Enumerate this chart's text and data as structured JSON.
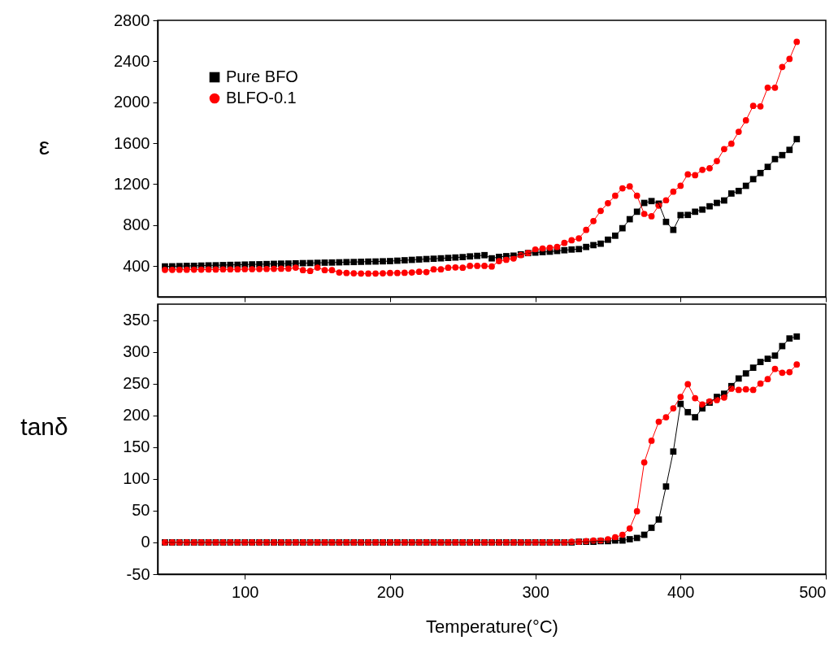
{
  "chart_data": [
    {
      "type": "line",
      "ylabel": "ε",
      "xlim": [
        40,
        500
      ],
      "xticks": [
        100,
        200,
        300,
        400,
        500
      ],
      "ylim": [
        100,
        2800
      ],
      "yticks": [
        400,
        800,
        1200,
        1600,
        2000,
        2400,
        2800
      ],
      "tick_labels": "y",
      "grid": false,
      "legend": "top left",
      "x": [
        45,
        50,
        55,
        60,
        65,
        70,
        75,
        80,
        85,
        90,
        95,
        100,
        105,
        110,
        115,
        120,
        125,
        130,
        135,
        140,
        145,
        150,
        155,
        160,
        165,
        170,
        175,
        180,
        185,
        190,
        195,
        200,
        205,
        210,
        215,
        220,
        225,
        230,
        235,
        240,
        245,
        250,
        255,
        260,
        265,
        270,
        275,
        280,
        285,
        290,
        295,
        300,
        305,
        310,
        315,
        320,
        325,
        330,
        335,
        340,
        345,
        350,
        355,
        360,
        365,
        370,
        375,
        380,
        385,
        390,
        395,
        400,
        405,
        410,
        415,
        420,
        425,
        430,
        435,
        440,
        445,
        450,
        455,
        460,
        465,
        470,
        475,
        480
      ],
      "series": [
        {
          "name": "Pure BFO",
          "color": "#000000",
          "marker": "square",
          "values": [
            397,
            398,
            400,
            402,
            403,
            405,
            407,
            408,
            410,
            412,
            413,
            415,
            417,
            418,
            420,
            422,
            424,
            425,
            427,
            429,
            430,
            432,
            434,
            435,
            437,
            439,
            440,
            442,
            444,
            445,
            447,
            449,
            453,
            457,
            461,
            465,
            469,
            472,
            476,
            480,
            484,
            488,
            495,
            500,
            507,
            476,
            490,
            497,
            502,
            515,
            527,
            532,
            537,
            541,
            548,
            555,
            562,
            566,
            587,
            605,
            619,
            658,
            697,
            770,
            858,
            931,
            1017,
            1035,
            1010,
            832,
            754,
            898,
            900,
            931,
            952,
            984,
            1017,
            1041,
            1109,
            1134,
            1184,
            1249,
            1309,
            1369,
            1445,
            1484,
            1535,
            1640
          ]
        },
        {
          "name": "BLFO-0.1",
          "color": "#ff0000",
          "marker": "circle",
          "values": [
            364,
            364,
            365,
            365,
            366,
            366,
            367,
            367,
            368,
            368,
            369,
            370,
            370,
            371,
            372,
            373,
            374,
            375,
            385,
            361,
            353,
            385,
            361,
            361,
            338,
            333,
            330,
            328,
            327,
            328,
            330,
            333,
            333,
            335,
            338,
            345,
            342,
            369,
            369,
            384,
            387,
            384,
            402,
            402,
            402,
            396,
            449,
            462,
            475,
            507,
            527,
            562,
            572,
            580,
            587,
            627,
            652,
            671,
            754,
            840,
            939,
            1015,
            1087,
            1160,
            1179,
            1087,
            910,
            887,
            991,
            1043,
            1127,
            1184,
            1296,
            1288,
            1340,
            1356,
            1426,
            1543,
            1595,
            1712,
            1824,
            1965,
            1960,
            2142,
            2142,
            2345,
            2423,
            2590
          ]
        }
      ]
    },
    {
      "type": "line",
      "ylabel": "tanδ",
      "xlabel": "Temperature(°C)",
      "xlim": [
        40,
        500
      ],
      "xticks": [
        100,
        200,
        300,
        400,
        500
      ],
      "ylim": [
        -50,
        375
      ],
      "yticks": [
        -50,
        0,
        50,
        100,
        150,
        200,
        250,
        300,
        350
      ],
      "grid": false,
      "x": [
        45,
        50,
        55,
        60,
        65,
        70,
        75,
        80,
        85,
        90,
        95,
        100,
        105,
        110,
        115,
        120,
        125,
        130,
        135,
        140,
        145,
        150,
        155,
        160,
        165,
        170,
        175,
        180,
        185,
        190,
        195,
        200,
        205,
        210,
        215,
        220,
        225,
        230,
        235,
        240,
        245,
        250,
        255,
        260,
        265,
        270,
        275,
        280,
        285,
        290,
        295,
        300,
        305,
        310,
        315,
        320,
        325,
        330,
        335,
        340,
        345,
        350,
        355,
        360,
        365,
        370,
        375,
        380,
        385,
        390,
        395,
        400,
        405,
        410,
        415,
        420,
        425,
        430,
        435,
        440,
        445,
        450,
        455,
        460,
        465,
        470,
        475,
        480
      ],
      "series": [
        {
          "color": "#000000",
          "marker": "square",
          "values": [
            0,
            0,
            0,
            0,
            0,
            0,
            0,
            0,
            0,
            0,
            0,
            0,
            0,
            0,
            0,
            0,
            0,
            0,
            0,
            0,
            0,
            0,
            0,
            0,
            0,
            0,
            0,
            0,
            0,
            0,
            0,
            0,
            0,
            0,
            0,
            0,
            0,
            0,
            0,
            0,
            0,
            0,
            0,
            0,
            0,
            0,
            0,
            0,
            0,
            0,
            0,
            0,
            0,
            0,
            0,
            0,
            0,
            1,
            1,
            1,
            2,
            2,
            3,
            3,
            5,
            7,
            12,
            23,
            36,
            88,
            143,
            218,
            205,
            197,
            211,
            220,
            229,
            234,
            246,
            258,
            266,
            275,
            284,
            289,
            294,
            309,
            321,
            324
          ]
        },
        {
          "color": "#ff0000",
          "marker": "circle",
          "values": [
            0,
            0,
            0,
            0,
            0,
            0,
            0,
            0,
            0,
            0,
            0,
            0,
            0,
            0,
            0,
            0,
            0,
            0,
            0,
            0,
            0,
            0,
            0,
            0,
            0,
            0,
            0,
            0,
            0,
            0,
            0,
            0,
            0,
            0,
            0,
            0,
            0,
            0,
            0,
            0,
            0,
            0,
            0,
            0,
            0,
            0,
            0,
            0,
            0,
            0,
            0,
            0,
            0,
            0,
            0,
            0,
            1,
            1,
            2,
            3,
            3,
            5,
            8,
            12,
            22,
            49,
            126,
            160,
            190,
            197,
            211,
            229,
            249,
            227,
            217,
            222,
            224,
            228,
            242,
            240,
            241,
            240,
            250,
            257,
            273,
            267,
            268,
            280
          ]
        }
      ]
    }
  ]
}
